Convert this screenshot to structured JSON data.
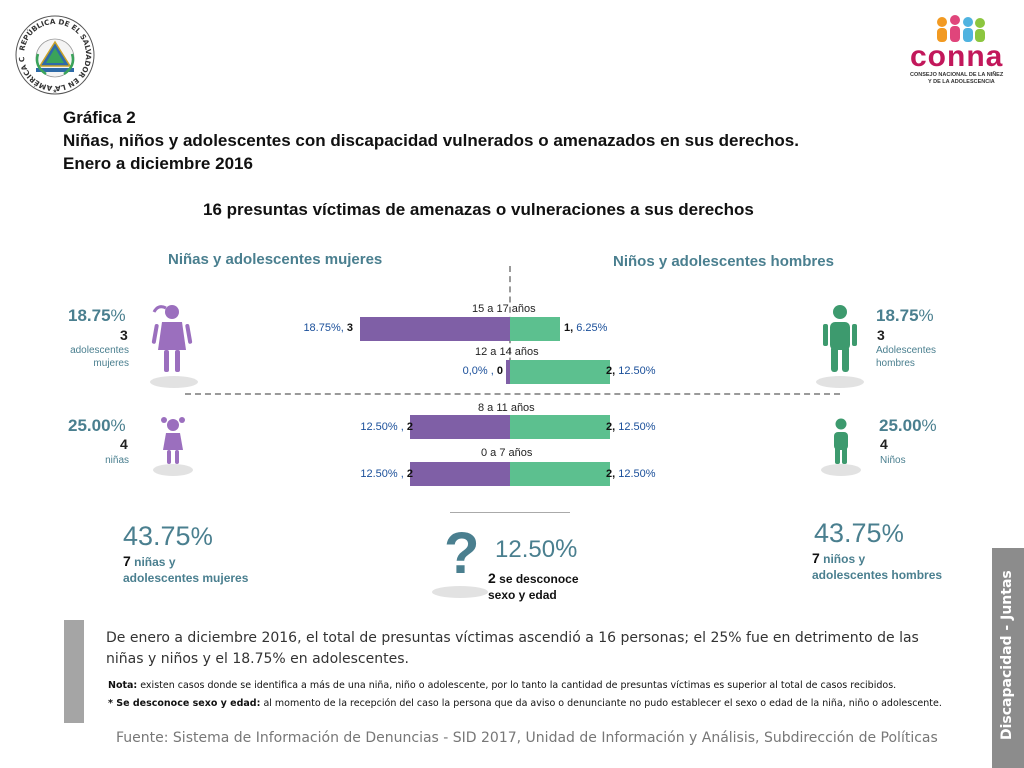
{
  "header": {
    "crest_text": "REPÚBLICA DE EL SALVADOR EN LA AMÉRICA CENTRAL",
    "logo_name": "conna",
    "logo_subtitle_1": "CONSEJO NACIONAL DE LA NIÑEZ",
    "logo_subtitle_2": "Y DE LA ADOLESCENCIA"
  },
  "title": {
    "line1": "Gráfica 2",
    "line2": "Niñas, niños y adolescentes con discapacidad vulnerados o amenazados en sus derechos.",
    "line3": "Enero a diciembre 2016"
  },
  "subtitle": "16 presuntas víctimas de amenazas o vulneraciones a sus derechos",
  "left": {
    "heading": "Niñas y adolescentes mujeres",
    "teen": {
      "pct": "18.75",
      "count": "3",
      "label1": "adolescentes",
      "label2": "mujeres"
    },
    "child": {
      "pct": "25.00",
      "count": "4",
      "label1": "niñas"
    },
    "total": {
      "pct": "43.75",
      "count": "7",
      "label1": "niñas y",
      "label2": "adolescentes mujeres"
    }
  },
  "right": {
    "heading": "Niños y adolescentes hombres",
    "teen": {
      "pct": "18.75",
      "count": "3",
      "label1": "Adolescentes",
      "label2": "hombres"
    },
    "child": {
      "pct": "25.00",
      "count": "4",
      "label1": "Niños"
    },
    "total": {
      "pct": "43.75",
      "count": "7",
      "label1": "niños y",
      "label2": "adolescentes hombres"
    }
  },
  "unknown": {
    "symbol": "?",
    "pct": "12.50",
    "count": "2",
    "label1": "se desconoce",
    "label2": "sexo y edad"
  },
  "percent_symbol": "%",
  "colors": {
    "female": "#7f5fa6",
    "male": "#5cc08f",
    "accent": "#4a7f8f",
    "figure_female": "#9b6fbe",
    "figure_male": "#3d9a6e"
  },
  "chart_data": {
    "type": "bar",
    "orientation": "horizontal-diverging",
    "title": "16 presuntas víctimas de amenazas o vulneraciones a sus derechos",
    "categories": [
      "15 a 17 años",
      "12 a 14 años",
      "8 a 11 años",
      "0 a 7 años"
    ],
    "series": [
      {
        "name": "Niñas y adolescentes mujeres",
        "values": [
          3,
          0,
          2,
          2
        ],
        "percent_labels": [
          "18.75%",
          "0,0%",
          "12.50%",
          "12.50%"
        ]
      },
      {
        "name": "Niños y adolescentes hombres",
        "values": [
          1,
          2,
          2,
          2
        ],
        "percent_labels": [
          "6.25%",
          "12.50%",
          "12.50%",
          "12.50%"
        ]
      }
    ],
    "xlim": [
      -3,
      3
    ]
  },
  "bar_labels": [
    {
      "left_pct": "18.75%,",
      "left_n": "3",
      "right_n": "1,",
      "right_pct": "6.25%"
    },
    {
      "left_pct": "0,0% ,",
      "left_n": "0",
      "right_n": "2,",
      "right_pct": "12.50%"
    },
    {
      "left_pct": "12.50% ,",
      "left_n": "2",
      "right_n": "2,",
      "right_pct": "12.50%"
    },
    {
      "left_pct": "12.50% ,",
      "left_n": "2",
      "right_n": "2,",
      "right_pct": "12.50%"
    }
  ],
  "body": {
    "paragraph": "De enero a diciembre 2016, el total de presuntas víctimas ascendió a 16 personas; el 25% fue en detrimento de las niñas y niños y el 18.75% en adolescentes.",
    "note_label": "Nota:",
    "note_text": " existen casos donde se identifica a más de una niña, niño o adolescente, por lo tanto la cantidad de presuntas víctimas es superior al total de casos recibidos.",
    "unknown_label": "* Se desconoce sexo y edad:",
    "unknown_text": " al momento de la recepción del caso la persona que da aviso o denunciante no pudo establecer el sexo o edad de la niña, niño o adolescente."
  },
  "source": "Fuente: Sistema de Información de Denuncias - SID 2017, Unidad de Información y Análisis, Subdirección de Políticas",
  "side_tab": "Discapacidad - Juntas"
}
